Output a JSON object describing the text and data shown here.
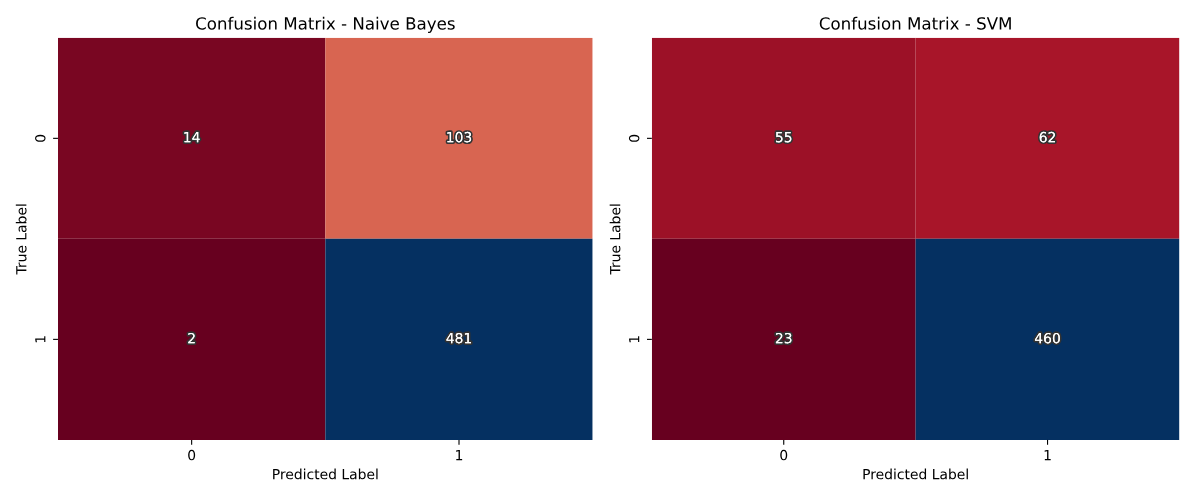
{
  "chart_data": [
    {
      "type": "heatmap",
      "title": "Confusion Matrix - Naive Bayes",
      "xlabel": "Predicted Label",
      "ylabel": "True Label",
      "categories": [
        "0",
        "1"
      ],
      "y_categories": [
        "0",
        "1"
      ],
      "cells": [
        [
          14,
          103
        ],
        [
          2,
          481
        ]
      ],
      "data_labels": true
    },
    {
      "type": "heatmap",
      "title": "Confusion Matrix - SVM",
      "xlabel": "Predicted Label",
      "ylabel": "True Label",
      "categories": [
        "0",
        "1"
      ],
      "y_categories": [
        "0",
        "1"
      ],
      "cells": [
        [
          55,
          62
        ],
        [
          23,
          460
        ]
      ],
      "data_labels": true
    }
  ]
}
